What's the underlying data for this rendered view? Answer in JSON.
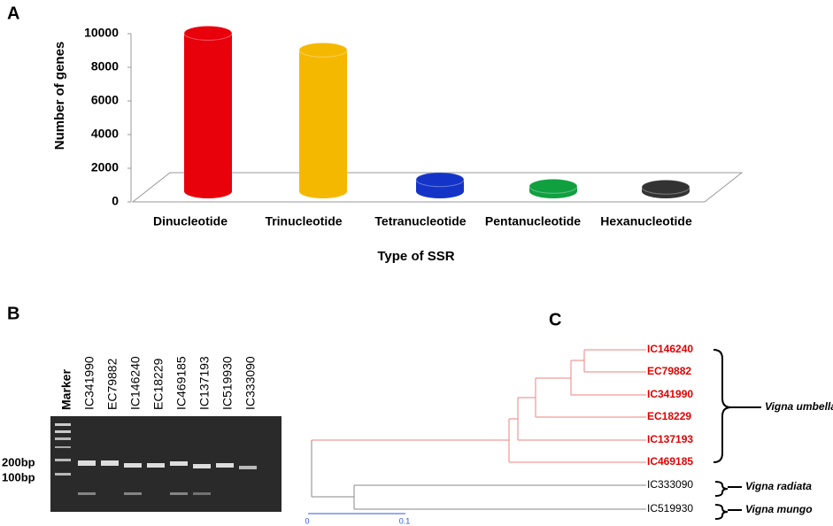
{
  "chart_data": {
    "type": "bar",
    "panel": "A",
    "xlabel": "Type of SSR",
    "ylabel": "Number of genes",
    "categories": [
      "Dinucleotide",
      "Trinucleotide",
      "Tetranucleotide",
      "Pentanucleotide",
      "Hexanucleotide"
    ],
    "values": [
      9400,
      8400,
      700,
      300,
      250
    ],
    "colors": [
      "#e8000b",
      "#f5b800",
      "#1434c8",
      "#10a040",
      "#333333"
    ],
    "ylim": [
      0,
      10000
    ],
    "yticks": [
      0,
      2000,
      4000,
      6000,
      8000,
      10000
    ],
    "grid": false
  },
  "gel": {
    "panel": "B",
    "lanes": [
      "Marker",
      "IC341990",
      "EC79882",
      "IC146240",
      "EC18229",
      "IC469185",
      "IC137193",
      "IC519930",
      "IC333090"
    ],
    "size_labels": [
      "200bp",
      "100bp"
    ]
  },
  "tree": {
    "panel": "C",
    "leaves": [
      "IC146240",
      "EC79882",
      "IC341990",
      "EC18229",
      "IC137193",
      "IC469185",
      "IC333090",
      "IC519930"
    ],
    "species": [
      "Vigna umbellata",
      "Vigna radiata",
      "Vigna mungo"
    ],
    "scale": [
      0,
      0.1
    ]
  }
}
